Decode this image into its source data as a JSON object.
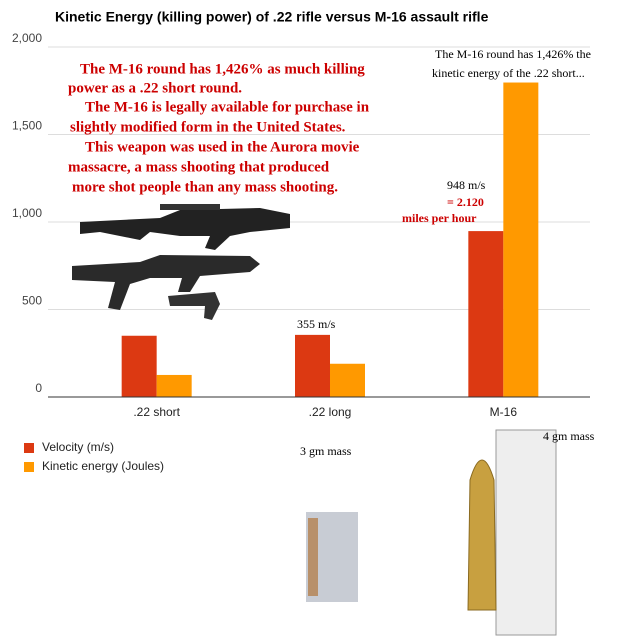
{
  "chart_data": {
    "type": "bar",
    "title": "Kinetic Energy (killing power) of .22 rifle versus M-16 assault rifle",
    "categories": [
      ".22 short",
      ".22 long",
      "M-16"
    ],
    "series": [
      {
        "name": "Velocity (m/s)",
        "color": "#dc3912",
        "values": [
          350,
          355,
          948
        ]
      },
      {
        "name": "Kinetic energy (Joules)",
        "color": "#ff9900",
        "values": [
          126,
          190,
          1797
        ]
      }
    ],
    "ylim": [
      0,
      2000
    ],
    "yticks": [
      0,
      500,
      {
        "value": 1000,
        "label": "1,000"
      },
      {
        "value": 1500,
        "label": "1,500"
      },
      {
        "value": 2000,
        "label": "2,000"
      }
    ],
    "grid": true,
    "legend": "bottom-left",
    "annotations": {
      "main_note": [
        "The M-16 round has 1,426% as much killing",
        "power as a .22 short round.",
        "The M-16 is legally available for purchase in",
        "slightly modified form in the United States.",
        "This weapon was used in the Aurora movie",
        "massacre, a mass shooting that produced",
        "more shot people than any mass shooting."
      ],
      "m16_note": [
        "The M-16 round has 1,426% the",
        "kinetic energy of the .22 short..."
      ],
      "m16_velocity": [
        "948 m/s",
        "= 2.120",
        "miles per hour"
      ],
      "long_velocity": "355 m/s",
      "mass_22": "3 gm mass",
      "mass_m16": "4 gm mass"
    }
  }
}
